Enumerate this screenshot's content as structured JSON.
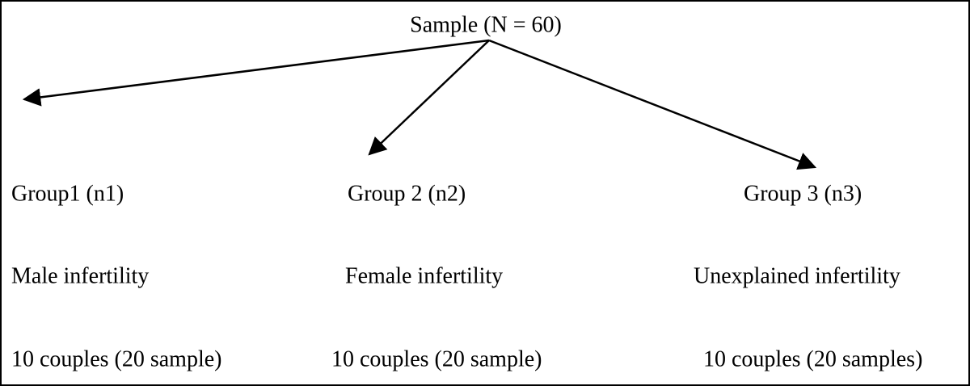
{
  "root": {
    "label": "Sample (N = 60)"
  },
  "groups": [
    {
      "title": "Group1 (n1)",
      "type": "Male infertility",
      "count": "10 couples (20 sample)"
    },
    {
      "title": "Group 2 (n2)",
      "type": "Female infertility",
      "count": "10 couples (20 sample)"
    },
    {
      "title": "Group 3 (n3)",
      "type": "Unexplained infertility",
      "count": "10 couples (20 samples)"
    }
  ]
}
